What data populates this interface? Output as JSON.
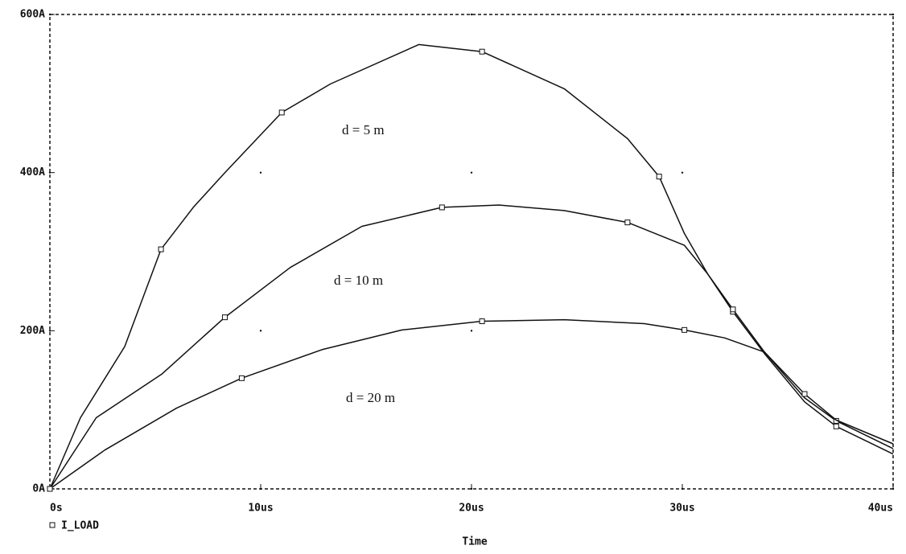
{
  "chart_data": {
    "type": "line",
    "x_label": "Time",
    "legend_label": "I_LOAD",
    "xlim": [
      0,
      40
    ],
    "xticks": [
      {
        "value": 0,
        "label": "0s"
      },
      {
        "value": 10,
        "label": "10us"
      },
      {
        "value": 20,
        "label": "20us"
      },
      {
        "value": 30,
        "label": "30us"
      },
      {
        "value": 40,
        "label": "40us"
      }
    ],
    "ylim": [
      0,
      600
    ],
    "yticks": [
      {
        "value": 0,
        "label": "0A"
      },
      {
        "value": 200,
        "label": "200A"
      },
      {
        "value": 400,
        "label": "400A"
      },
      {
        "value": 600,
        "label": "600A"
      }
    ],
    "grid": "dots",
    "series": [
      {
        "name": "d = 5 m",
        "color": "#111111",
        "x": [
          0,
          1.45,
          3.55,
          5.27,
          6.8,
          8.3,
          11,
          13.3,
          17.5,
          20.5,
          24.4,
          27.4,
          28.9,
          30.1,
          31.2,
          32.4,
          33.9,
          35.8,
          37.3,
          40
        ],
        "values": [
          0,
          90,
          180,
          303,
          356,
          400,
          476,
          512,
          562,
          553,
          506,
          443,
          395,
          323,
          272,
          224,
          171,
          110,
          79,
          44
        ]
      },
      {
        "name": "d = 10 m",
        "color": "#111111",
        "x": [
          0,
          2.2,
          5.3,
          8.3,
          11.4,
          14.8,
          18.6,
          21.3,
          24.4,
          27.4,
          30.1,
          31.2,
          32.4,
          33.9,
          35.8,
          37.3,
          40
        ],
        "values": [
          0,
          90,
          145,
          217,
          280,
          332,
          356,
          359,
          352,
          337,
          308,
          272,
          227,
          173,
          115,
          86,
          51
        ]
      },
      {
        "name": "d = 20 m",
        "color": "#111111",
        "x": [
          0,
          2.6,
          6,
          9.1,
          12.9,
          16.7,
          20.5,
          24.4,
          28.2,
          30.1,
          32,
          33.9,
          35.8,
          37.3,
          40
        ],
        "values": [
          0,
          49,
          102,
          140,
          176,
          201,
          212,
          214,
          209,
          201,
          191,
          173,
          120,
          87,
          57
        ]
      }
    ]
  }
}
